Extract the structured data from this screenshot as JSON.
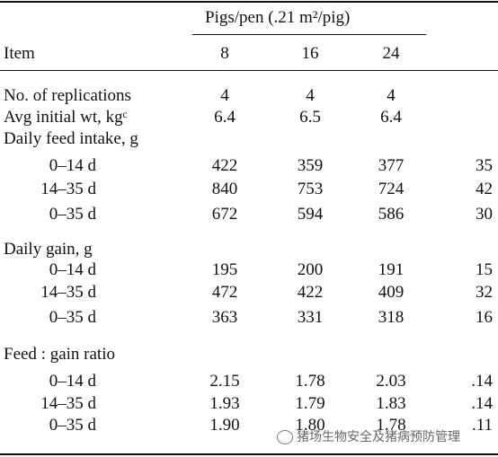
{
  "table": {
    "group_header": "Pigs/pen (.21 m²/pig)",
    "columns": [
      "Item",
      "8",
      "16",
      "24"
    ],
    "rows": [
      {
        "label": "No. of replications",
        "values": [
          "4",
          "4",
          "4",
          null
        ]
      },
      {
        "label": "Avg initial wt, kgᶜ",
        "values": [
          "6.4",
          "6.5",
          "6.4",
          null
        ]
      },
      {
        "label": "Daily feed intake, g",
        "values": [
          null,
          null,
          null,
          null
        ]
      },
      {
        "label": "0–14 d",
        "values": [
          "422",
          "359",
          "377",
          "35"
        ]
      },
      {
        "label": "14–35 d",
        "values": [
          "840",
          "753",
          "724",
          "42"
        ]
      },
      {
        "label": "0–35 d",
        "values": [
          "672",
          "594",
          "586",
          "30"
        ]
      },
      {
        "label": "Daily gain, g",
        "values": [
          null,
          null,
          null,
          null
        ]
      },
      {
        "label": "0–14 d",
        "values": [
          "195",
          "200",
          "191",
          "15"
        ]
      },
      {
        "label": "14–35 d",
        "values": [
          "472",
          "422",
          "409",
          "32"
        ]
      },
      {
        "label": "0–35 d",
        "values": [
          "363",
          "331",
          "318",
          "16"
        ]
      },
      {
        "label": "Feed : gain ratio",
        "values": [
          null,
          null,
          null,
          null
        ]
      },
      {
        "label": "0–14 d",
        "values": [
          "2.15",
          "1.78",
          "2.03",
          ".14"
        ]
      },
      {
        "label": "14–35 d",
        "values": [
          "1.93",
          "1.79",
          "1.83",
          ".14"
        ]
      },
      {
        "label": "0–35 d",
        "values": [
          "1.90",
          "1.80",
          "1.78",
          ".11"
        ]
      }
    ]
  },
  "watermark": "猪场生物安全及猪病预防管理"
}
